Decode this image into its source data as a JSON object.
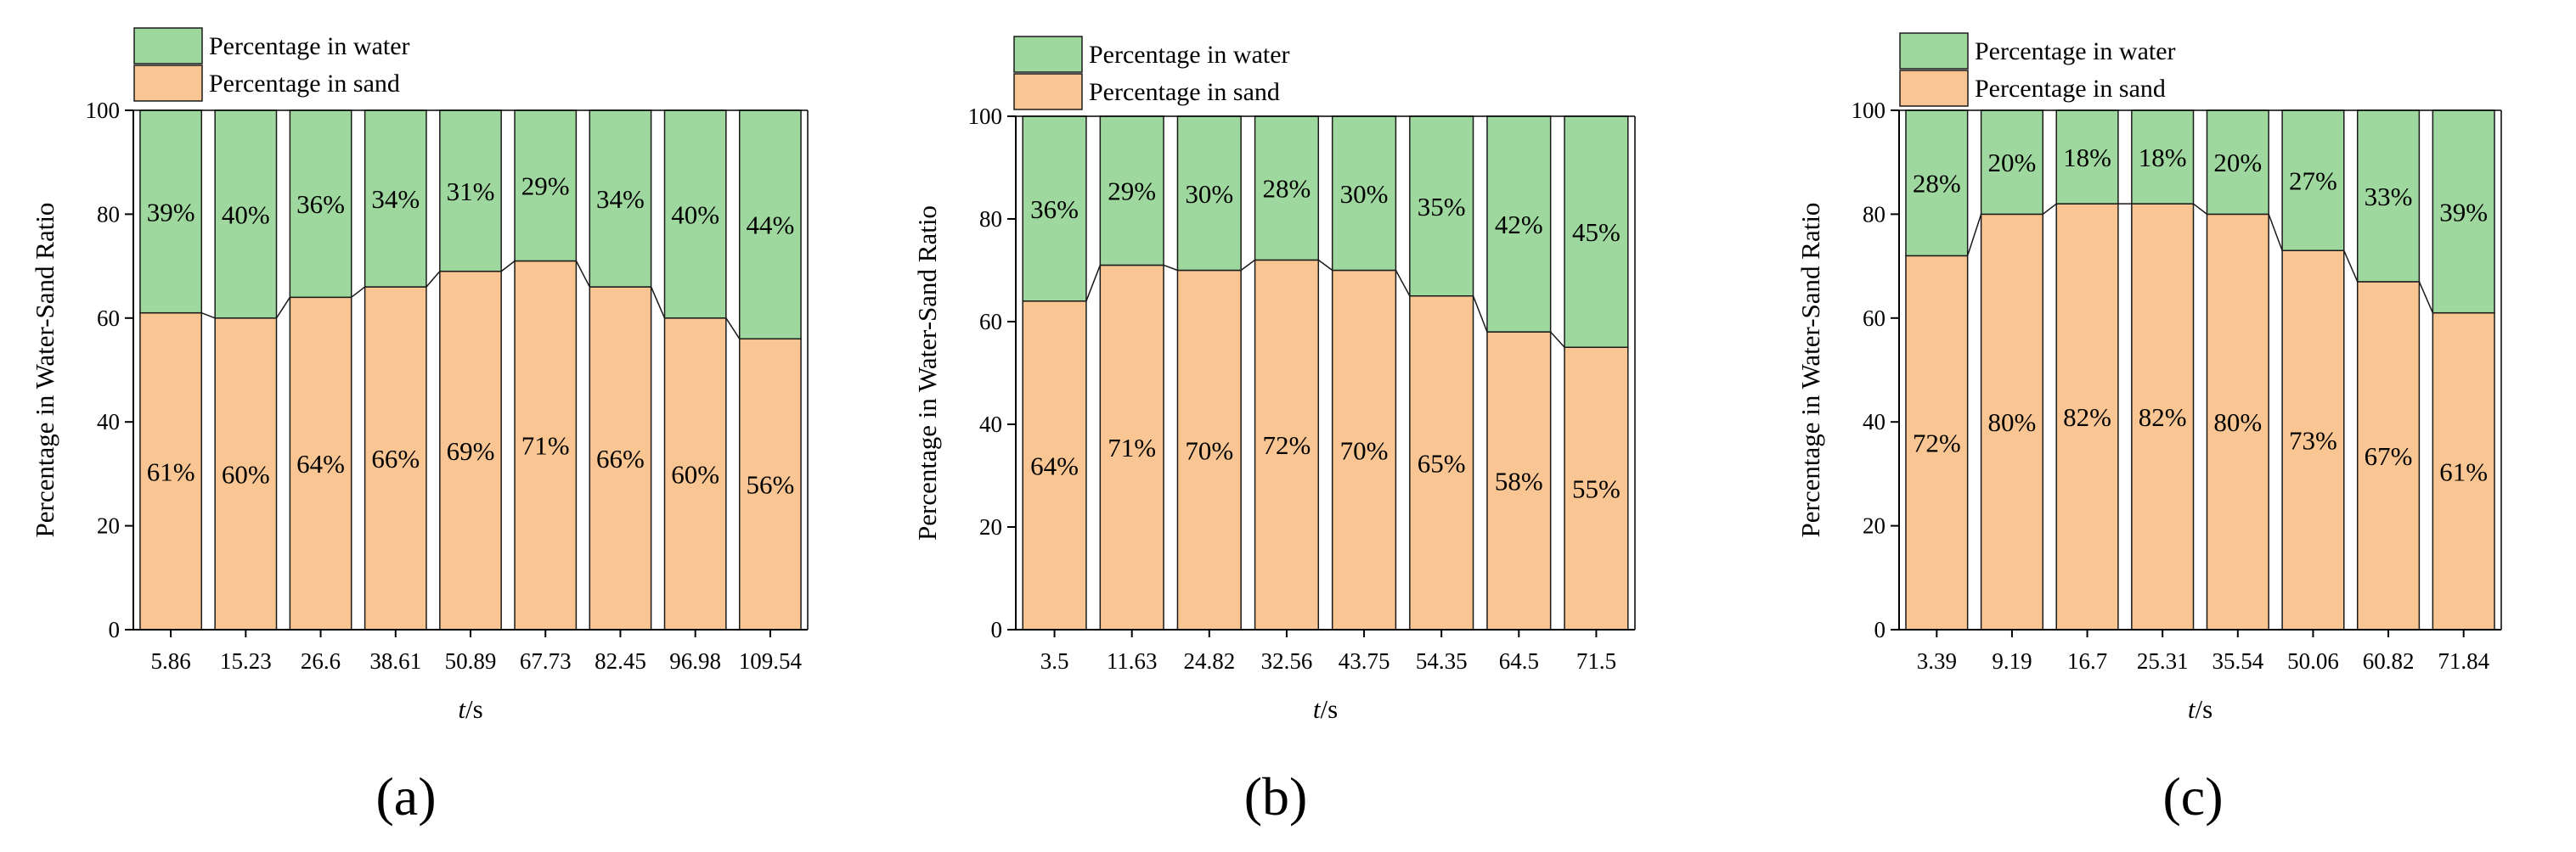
{
  "colors": {
    "water": "#9fd89f",
    "sand": "#f9c693",
    "edge": "#1a1a1a"
  },
  "chart_data": [
    {
      "type": "bar",
      "stacked": true,
      "panel_label": "(a)",
      "xlabel_italic": "t",
      "xlabel_unit": "/s",
      "ylabel": "Percentage in Water-Sand Ratio",
      "ylim": [
        0,
        100
      ],
      "yticks": [
        0,
        20,
        40,
        60,
        80,
        100
      ],
      "legend": [
        "Percentage in water",
        "Percentage in sand"
      ],
      "categories": [
        "5.86",
        "15.23",
        "26.6",
        "38.61",
        "50.89",
        "67.73",
        "82.45",
        "96.98",
        "109.54"
      ],
      "series": [
        {
          "name": "Percentage in sand",
          "values": [
            61,
            60,
            64,
            66,
            69,
            71,
            66,
            60,
            56
          ],
          "labels": [
            "61%",
            "60%",
            "64%",
            "66%",
            "69%",
            "71%",
            "66%",
            "60%",
            "56%"
          ]
        },
        {
          "name": "Percentage in water",
          "values": [
            39,
            40,
            36,
            34,
            31,
            29,
            34,
            40,
            44
          ],
          "labels": [
            "39%",
            "40%",
            "36%",
            "34%",
            "31%",
            "29%",
            "34%",
            "40%",
            "44%"
          ]
        }
      ]
    },
    {
      "type": "bar",
      "stacked": true,
      "panel_label": "(b)",
      "xlabel_italic": "t",
      "xlabel_unit": "/s",
      "ylabel": "Percentage in Water-Sand Ratio",
      "ylim": [
        0,
        100
      ],
      "yticks": [
        0,
        20,
        40,
        60,
        80,
        100
      ],
      "legend": [
        "Percentage in water",
        "Percentage in sand"
      ],
      "categories": [
        "3.5",
        "11.63",
        "24.82",
        "32.56",
        "43.75",
        "54.35",
        "64.5",
        "71.5"
      ],
      "series": [
        {
          "name": "Percentage in sand",
          "values": [
            64,
            71,
            70,
            72,
            70,
            65,
            58,
            55
          ],
          "labels": [
            "64%",
            "71%",
            "70%",
            "72%",
            "70%",
            "65%",
            "58%",
            "55%"
          ]
        },
        {
          "name": "Percentage in water",
          "values": [
            36,
            29,
            30,
            28,
            30,
            35,
            42,
            45
          ],
          "labels": [
            "36%",
            "29%",
            "30%",
            "28%",
            "30%",
            "35%",
            "42%",
            "45%"
          ]
        }
      ]
    },
    {
      "type": "bar",
      "stacked": true,
      "panel_label": "(c)",
      "xlabel_italic": "t",
      "xlabel_unit": "/s",
      "ylabel": "Percentage in Water-Sand Ratio",
      "ylim": [
        0,
        100
      ],
      "yticks": [
        0,
        20,
        40,
        60,
        80,
        100
      ],
      "legend": [
        "Percentage in water",
        "Percentage in sand"
      ],
      "categories": [
        "3.39",
        "9.19",
        "16.7",
        "25.31",
        "35.54",
        "50.06",
        "60.82",
        "71.84"
      ],
      "series": [
        {
          "name": "Percentage in sand",
          "values": [
            72,
            80,
            82,
            82,
            80,
            73,
            67,
            61
          ],
          "labels": [
            "72%",
            "80%",
            "82%",
            "82%",
            "80%",
            "73%",
            "67%",
            "61%"
          ]
        },
        {
          "name": "Percentage in water",
          "values": [
            28,
            20,
            18,
            18,
            20,
            27,
            33,
            39
          ],
          "labels": [
            "28%",
            "20%",
            "18%",
            "18%",
            "20%",
            "27%",
            "33%",
            "39%"
          ]
        }
      ]
    }
  ]
}
